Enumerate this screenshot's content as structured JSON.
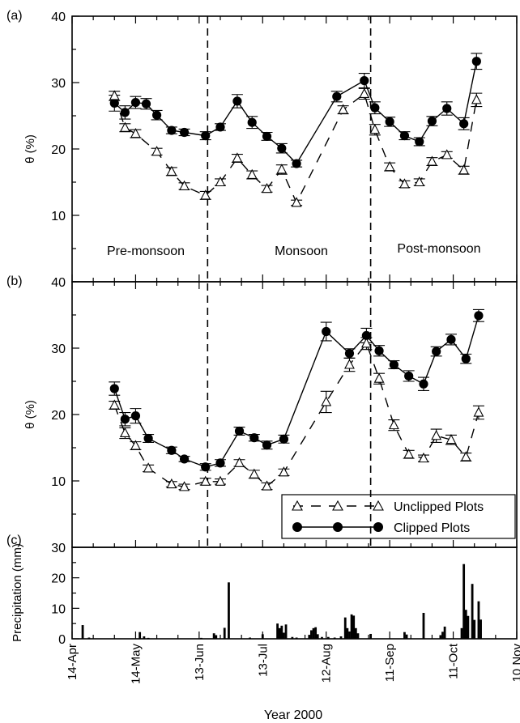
{
  "chart_data": {
    "type": "line",
    "xlabel": "Year 2000",
    "x_ticks": [
      "14-Apr",
      "14-May",
      "13-Jun",
      "13-Jul",
      "12-Aug",
      "11-Sep",
      "11-Oct",
      "10 Nov"
    ],
    "x_range": [
      "2000-04-14",
      "2000-11-10"
    ],
    "season_dividers": [
      "2000-06-17",
      "2000-09-02"
    ],
    "seasons": [
      "Pre-monsoon",
      "Monsoon",
      "Post-monsoon"
    ],
    "legend": {
      "unclipped": "Unclipped Plots",
      "clipped": "Clipped Plots",
      "placement": "lower-right of panel (b)"
    },
    "panels": [
      {
        "label": "(a)",
        "ylabel": "θ  (%)",
        "ylim": [
          0,
          40
        ],
        "yticks": [
          10,
          20,
          30,
          40
        ],
        "series": [
          {
            "name": "Clipped Plots",
            "points": [
              {
                "x": "2000-05-04",
                "y": 26.9,
                "err": 1.2
              },
              {
                "x": "2000-05-09",
                "y": 25.5,
                "err": 1.0
              },
              {
                "x": "2000-05-14",
                "y": 27.0,
                "err": 0.9
              },
              {
                "x": "2000-05-19",
                "y": 26.8,
                "err": 0.8
              },
              {
                "x": "2000-05-24",
                "y": 25.1,
                "err": 0.7
              },
              {
                "x": "2000-05-31",
                "y": 22.8,
                "err": 0.5
              },
              {
                "x": "2000-06-06",
                "y": 22.5,
                "err": 0.5
              },
              {
                "x": "2000-06-16",
                "y": 22.0,
                "err": 0.6
              },
              {
                "x": "2000-06-23",
                "y": 23.3,
                "err": 0.5
              },
              {
                "x": "2000-07-01",
                "y": 27.2,
                "err": 1.0
              },
              {
                "x": "2000-07-08",
                "y": 24.0,
                "err": 0.9
              },
              {
                "x": "2000-07-15",
                "y": 21.9,
                "err": 0.6
              },
              {
                "x": "2000-07-22",
                "y": 20.1,
                "err": 0.7
              },
              {
                "x": "2000-07-29",
                "y": 17.8,
                "err": 0.5
              },
              {
                "x": "2000-08-17",
                "y": 27.9,
                "err": 0.8
              },
              {
                "x": "2000-08-30",
                "y": 30.3,
                "err": 1.1
              },
              {
                "x": "2000-09-04",
                "y": 26.2,
                "err": 0.9
              },
              {
                "x": "2000-09-11",
                "y": 24.1,
                "err": 0.7
              },
              {
                "x": "2000-09-18",
                "y": 22.0,
                "err": 0.6
              },
              {
                "x": "2000-09-25",
                "y": 21.1,
                "err": 0.6
              },
              {
                "x": "2000-10-01",
                "y": 24.2,
                "err": 0.7
              },
              {
                "x": "2000-10-08",
                "y": 26.1,
                "err": 1.0
              },
              {
                "x": "2000-10-16",
                "y": 23.8,
                "err": 0.9
              },
              {
                "x": "2000-10-22",
                "y": 33.2,
                "err": 1.2
              }
            ]
          },
          {
            "name": "Unclipped Plots",
            "points": [
              {
                "x": "2000-05-04",
                "y": 28.0,
                "err": 0.7
              },
              {
                "x": "2000-05-09",
                "y": 23.2,
                "err": 0.6
              },
              {
                "x": "2000-05-14",
                "y": 22.3,
                "err": 0.6
              },
              {
                "x": "2000-05-24",
                "y": 19.6,
                "err": 0.5
              },
              {
                "x": "2000-05-31",
                "y": 16.6,
                "err": 0.6
              },
              {
                "x": "2000-06-06",
                "y": 14.4,
                "err": 0.5
              },
              {
                "x": "2000-06-16",
                "y": 13.0,
                "err": 0.6
              },
              {
                "x": "2000-06-23",
                "y": 15.0,
                "err": 0.5
              },
              {
                "x": "2000-07-01",
                "y": 18.6,
                "err": 0.6
              },
              {
                "x": "2000-07-08",
                "y": 16.1,
                "err": 0.6
              },
              {
                "x": "2000-07-15",
                "y": 14.0,
                "err": 0.5
              },
              {
                "x": "2000-07-22",
                "y": 16.9,
                "err": 0.7
              },
              {
                "x": "2000-07-29",
                "y": 11.9,
                "err": 0.4
              },
              {
                "x": "2000-08-20",
                "y": 25.9,
                "err": 0.6
              },
              {
                "x": "2000-08-30",
                "y": 28.3,
                "err": 0.8
              },
              {
                "x": "2000-09-04",
                "y": 22.9,
                "err": 0.8
              },
              {
                "x": "2000-09-11",
                "y": 17.3,
                "err": 0.6
              },
              {
                "x": "2000-09-18",
                "y": 14.7,
                "err": 0.5
              },
              {
                "x": "2000-09-25",
                "y": 15.0,
                "err": 0.5
              },
              {
                "x": "2000-10-01",
                "y": 18.1,
                "err": 0.6
              },
              {
                "x": "2000-10-08",
                "y": 19.1,
                "err": 0.5
              },
              {
                "x": "2000-10-16",
                "y": 16.8,
                "err": 0.6
              },
              {
                "x": "2000-10-22",
                "y": 27.4,
                "err": 1.0
              }
            ]
          }
        ]
      },
      {
        "label": "(b)",
        "ylabel": "θ (%)",
        "ylim": [
          0,
          40
        ],
        "yticks": [
          10,
          20,
          30,
          40
        ],
        "series": [
          {
            "name": "Clipped Plots",
            "points": [
              {
                "x": "2000-05-04",
                "y": 23.9,
                "err": 1.0
              },
              {
                "x": "2000-05-09",
                "y": 19.3,
                "err": 1.0
              },
              {
                "x": "2000-05-14",
                "y": 19.8,
                "err": 1.1
              },
              {
                "x": "2000-05-20",
                "y": 16.4,
                "err": 0.6
              },
              {
                "x": "2000-05-31",
                "y": 14.6,
                "err": 0.5
              },
              {
                "x": "2000-06-06",
                "y": 13.3,
                "err": 0.4
              },
              {
                "x": "2000-06-16",
                "y": 12.1,
                "err": 0.5
              },
              {
                "x": "2000-06-23",
                "y": 12.7,
                "err": 0.5
              },
              {
                "x": "2000-07-02",
                "y": 17.5,
                "err": 0.6
              },
              {
                "x": "2000-07-09",
                "y": 16.5,
                "err": 0.5
              },
              {
                "x": "2000-07-15",
                "y": 15.4,
                "err": 0.6
              },
              {
                "x": "2000-07-23",
                "y": 16.3,
                "err": 0.6
              },
              {
                "x": "2000-08-12",
                "y": 32.5,
                "err": 1.4
              },
              {
                "x": "2000-08-23",
                "y": 29.2,
                "err": 0.7
              },
              {
                "x": "2000-08-31",
                "y": 31.9,
                "err": 1.1
              },
              {
                "x": "2000-09-06",
                "y": 29.6,
                "err": 0.8
              },
              {
                "x": "2000-09-13",
                "y": 27.5,
                "err": 0.6
              },
              {
                "x": "2000-09-20",
                "y": 25.8,
                "err": 0.8
              },
              {
                "x": "2000-09-27",
                "y": 24.6,
                "err": 1.0
              },
              {
                "x": "2000-10-03",
                "y": 29.5,
                "err": 0.7
              },
              {
                "x": "2000-10-10",
                "y": 31.3,
                "err": 0.8
              },
              {
                "x": "2000-10-17",
                "y": 28.4,
                "err": 0.7
              },
              {
                "x": "2000-10-23",
                "y": 34.9,
                "err": 0.9
              }
            ]
          },
          {
            "name": "Unclipped Plots",
            "points": [
              {
                "x": "2000-05-04",
                "y": 21.4,
                "err": 0.6
              },
              {
                "x": "2000-05-09",
                "y": 17.2,
                "err": 0.8
              },
              {
                "x": "2000-05-14",
                "y": 15.3,
                "err": 0.6
              },
              {
                "x": "2000-05-20",
                "y": 11.9,
                "err": 0.5
              },
              {
                "x": "2000-05-31",
                "y": 9.5,
                "err": 0.4
              },
              {
                "x": "2000-06-06",
                "y": 9.1,
                "err": 0.4
              },
              {
                "x": "2000-06-16",
                "y": 9.9,
                "err": 0.5
              },
              {
                "x": "2000-06-23",
                "y": 9.9,
                "err": 0.4
              },
              {
                "x": "2000-07-02",
                "y": 12.7,
                "err": 0.5
              },
              {
                "x": "2000-07-09",
                "y": 11.0,
                "err": 0.6
              },
              {
                "x": "2000-07-15",
                "y": 9.2,
                "err": 0.5
              },
              {
                "x": "2000-07-23",
                "y": 11.3,
                "err": 0.5
              },
              {
                "x": "2000-08-12",
                "y": 21.9,
                "err": 1.6
              },
              {
                "x": "2000-08-23",
                "y": 27.5,
                "err": 1.0
              },
              {
                "x": "2000-08-31",
                "y": 30.7,
                "err": 0.9
              },
              {
                "x": "2000-09-06",
                "y": 25.4,
                "err": 0.8
              },
              {
                "x": "2000-09-13",
                "y": 18.4,
                "err": 0.8
              },
              {
                "x": "2000-09-20",
                "y": 14.0,
                "err": 0.6
              },
              {
                "x": "2000-09-27",
                "y": 13.4,
                "err": 0.5
              },
              {
                "x": "2000-10-03",
                "y": 16.8,
                "err": 1.0
              },
              {
                "x": "2000-10-10",
                "y": 16.2,
                "err": 0.7
              },
              {
                "x": "2000-10-17",
                "y": 13.6,
                "err": 0.6
              },
              {
                "x": "2000-10-23",
                "y": 20.3,
                "err": 1.0
              }
            ]
          }
        ]
      },
      {
        "label": "(c)",
        "ylabel": "Precipitation (mm)",
        "type": "bar",
        "ylim": [
          0,
          30
        ],
        "yticks": [
          0,
          10,
          20,
          30
        ],
        "bars": [
          {
            "x": "2000-04-19",
            "y": 4.5
          },
          {
            "x": "2000-04-22",
            "y": 0.4
          },
          {
            "x": "2000-05-16",
            "y": 2.2
          },
          {
            "x": "2000-05-18",
            "y": 0.8
          },
          {
            "x": "2000-05-20",
            "y": 0.3
          },
          {
            "x": "2000-06-14",
            "y": 0.3
          },
          {
            "x": "2000-06-20",
            "y": 1.8
          },
          {
            "x": "2000-06-21",
            "y": 1.2
          },
          {
            "x": "2000-06-25",
            "y": 3.6
          },
          {
            "x": "2000-06-27",
            "y": 18.5
          },
          {
            "x": "2000-07-07",
            "y": 0.4
          },
          {
            "x": "2000-07-13",
            "y": 1.5
          },
          {
            "x": "2000-07-20",
            "y": 5.0
          },
          {
            "x": "2000-07-21",
            "y": 3.5
          },
          {
            "x": "2000-07-22",
            "y": 4.3
          },
          {
            "x": "2000-07-23",
            "y": 2.0
          },
          {
            "x": "2000-07-24",
            "y": 4.7
          },
          {
            "x": "2000-07-27",
            "y": 0.6
          },
          {
            "x": "2000-07-29",
            "y": 0.4
          },
          {
            "x": "2000-08-04",
            "y": 1.3
          },
          {
            "x": "2000-08-05",
            "y": 2.8
          },
          {
            "x": "2000-08-06",
            "y": 3.5
          },
          {
            "x": "2000-08-07",
            "y": 3.8
          },
          {
            "x": "2000-08-08",
            "y": 1.5
          },
          {
            "x": "2000-08-10",
            "y": 0.6
          },
          {
            "x": "2000-08-13",
            "y": 0.6
          },
          {
            "x": "2000-08-16",
            "y": 0.4
          },
          {
            "x": "2000-08-19",
            "y": 0.8
          },
          {
            "x": "2000-08-21",
            "y": 7.0
          },
          {
            "x": "2000-08-22",
            "y": 3.5
          },
          {
            "x": "2000-08-23",
            "y": 2.4
          },
          {
            "x": "2000-08-24",
            "y": 8.0
          },
          {
            "x": "2000-08-25",
            "y": 7.6
          },
          {
            "x": "2000-08-26",
            "y": 3.5
          },
          {
            "x": "2000-08-27",
            "y": 1.8
          },
          {
            "x": "2000-09-02",
            "y": 1.6
          },
          {
            "x": "2000-09-18",
            "y": 2.2
          },
          {
            "x": "2000-09-19",
            "y": 1.4
          },
          {
            "x": "2000-09-27",
            "y": 8.5
          },
          {
            "x": "2000-10-05",
            "y": 1.2
          },
          {
            "x": "2000-10-06",
            "y": 2.3
          },
          {
            "x": "2000-10-07",
            "y": 4.0
          },
          {
            "x": "2000-10-15",
            "y": 3.5
          },
          {
            "x": "2000-10-16",
            "y": 24.5
          },
          {
            "x": "2000-10-17",
            "y": 9.5
          },
          {
            "x": "2000-10-18",
            "y": 7.5
          },
          {
            "x": "2000-10-20",
            "y": 18.0
          },
          {
            "x": "2000-10-21",
            "y": 6.2
          },
          {
            "x": "2000-10-23",
            "y": 12.3
          },
          {
            "x": "2000-10-24",
            "y": 6.3
          }
        ]
      }
    ]
  }
}
